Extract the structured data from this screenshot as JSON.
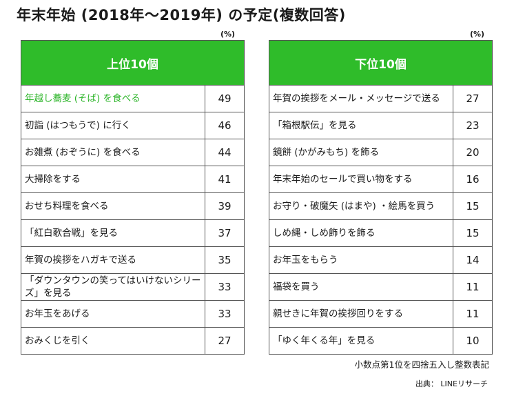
{
  "title": "年末年始 (2018年～2019年) の予定(複数回答)",
  "unit_left": "(%)",
  "unit_right": "(%)",
  "colors": {
    "header_green": "#2fbc2a",
    "highlight_text": "#2db52a",
    "border": "#555555"
  },
  "footnote": "小数点第1位を四捨五入し整数表記",
  "source": "出典： LINEリサーチ",
  "chart_data": [
    {
      "type": "table",
      "title": "上位10個",
      "rows": [
        {
          "label": "年越し蕎麦 (そば) を食べる",
          "value": 49
        },
        {
          "label": "初詣 (はつもうで) に行く",
          "value": 46
        },
        {
          "label": "お雑煮 (おぞうに) を食べる",
          "value": 44
        },
        {
          "label": "大掃除をする",
          "value": 41
        },
        {
          "label": "おせち料理を食べる",
          "value": 39
        },
        {
          "label": "「紅白歌合戦」を見る",
          "value": 37
        },
        {
          "label": "年賀の挨拶をハガキで送る",
          "value": 35
        },
        {
          "label": "「ダウンタウンの笑ってはいけないシリーズ」を見る",
          "value": 33
        },
        {
          "label": "お年玉をあげる",
          "value": 33
        },
        {
          "label": "おみくじを引く",
          "value": 27
        }
      ]
    },
    {
      "type": "table",
      "title": "下位10個",
      "rows": [
        {
          "label": "年賀の挨拶をメール・メッセージで送る",
          "value": 27
        },
        {
          "label": "「箱根駅伝」を見る",
          "value": 23
        },
        {
          "label": "鏡餅 (かがみもち) を飾る",
          "value": 20
        },
        {
          "label": "年末年始のセールで買い物をする",
          "value": 16
        },
        {
          "label": "お守り・破魔矢 (はまや) ・絵馬を買う",
          "value": 15
        },
        {
          "label": "しめ縄・しめ飾りを飾る",
          "value": 15
        },
        {
          "label": "お年玉をもらう",
          "value": 14
        },
        {
          "label": "福袋を買う",
          "value": 11
        },
        {
          "label": "親せきに年賀の挨拶回りをする",
          "value": 11
        },
        {
          "label": "「ゆく年くる年」を見る",
          "value": 10
        }
      ]
    }
  ]
}
